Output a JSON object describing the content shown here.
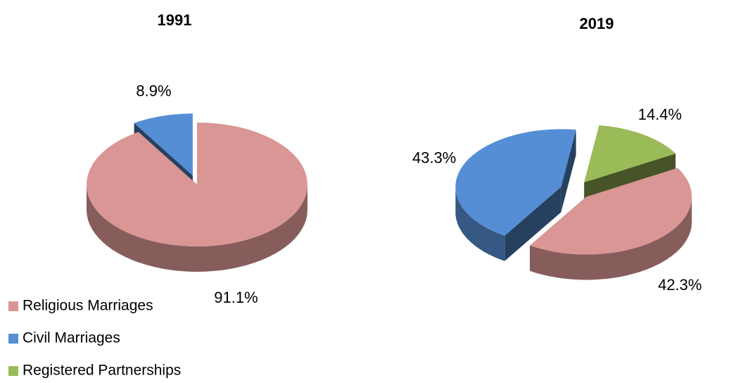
{
  "chart_data": {
    "type": "pie3d",
    "categories": [
      "Religious Marriages",
      "Civil Marriages",
      "Registered Partnerships"
    ],
    "colors": [
      "#d99694",
      "#558ed5",
      "#9bbb59"
    ],
    "series": [
      {
        "name": "1991",
        "values": [
          91.1,
          8.9,
          null
        ],
        "value_labels": [
          "91.1%",
          "8.9%",
          null
        ]
      },
      {
        "name": "2019",
        "values": [
          42.3,
          43.3,
          14.4
        ],
        "value_labels": [
          "42.3%",
          "43.3%",
          "14.4%"
        ]
      }
    ],
    "legend": "bottom-left"
  }
}
